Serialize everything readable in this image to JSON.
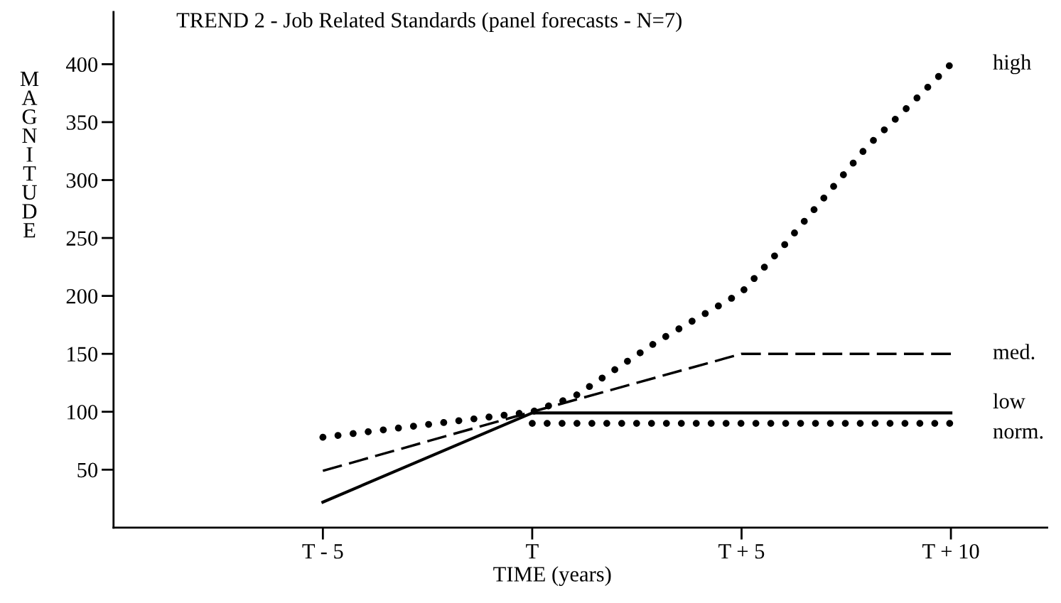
{
  "chart_data": {
    "type": "line",
    "title": "TREND 2 - Job Related Standards (panel forecasts - N=7)",
    "xlabel": "TIME (years)",
    "ylabel": "MAGNITUDE",
    "xlim": [
      -10,
      12.3
    ],
    "ylim": [
      0,
      445
    ],
    "xticks": [
      {
        "value": -5,
        "label": "T - 5"
      },
      {
        "value": 0,
        "label": "T"
      },
      {
        "value": 5,
        "label": "T + 5"
      },
      {
        "value": 10,
        "label": "T + 10"
      }
    ],
    "yticks": [
      50,
      100,
      150,
      200,
      250,
      300,
      350,
      400
    ],
    "grid": false,
    "legend": false,
    "series": [
      {
        "name": "high",
        "color": "#000000",
        "line_style": "dotted",
        "x": [
          -5,
          0,
          1,
          2,
          3,
          4,
          5,
          6,
          7,
          8,
          9,
          10
        ],
        "values": [
          78,
          100,
          113,
          137,
          161,
          182,
          203,
          243,
          286,
          329,
          364,
          400
        ]
      },
      {
        "name": "med.",
        "color": "#000000",
        "line_style": "dashed",
        "x": [
          -5,
          0,
          5,
          10
        ],
        "values": [
          49,
          100,
          150,
          150
        ]
      },
      {
        "name": "low",
        "color": "#000000",
        "line_style": "solid",
        "x": [
          -5,
          0,
          5,
          10
        ],
        "values": [
          22,
          99,
          99,
          99
        ]
      },
      {
        "name": "norm.",
        "color": "#000000",
        "line_style": "dotted",
        "x": [
          0,
          5,
          10
        ],
        "values": [
          90,
          90,
          90
        ]
      }
    ]
  }
}
